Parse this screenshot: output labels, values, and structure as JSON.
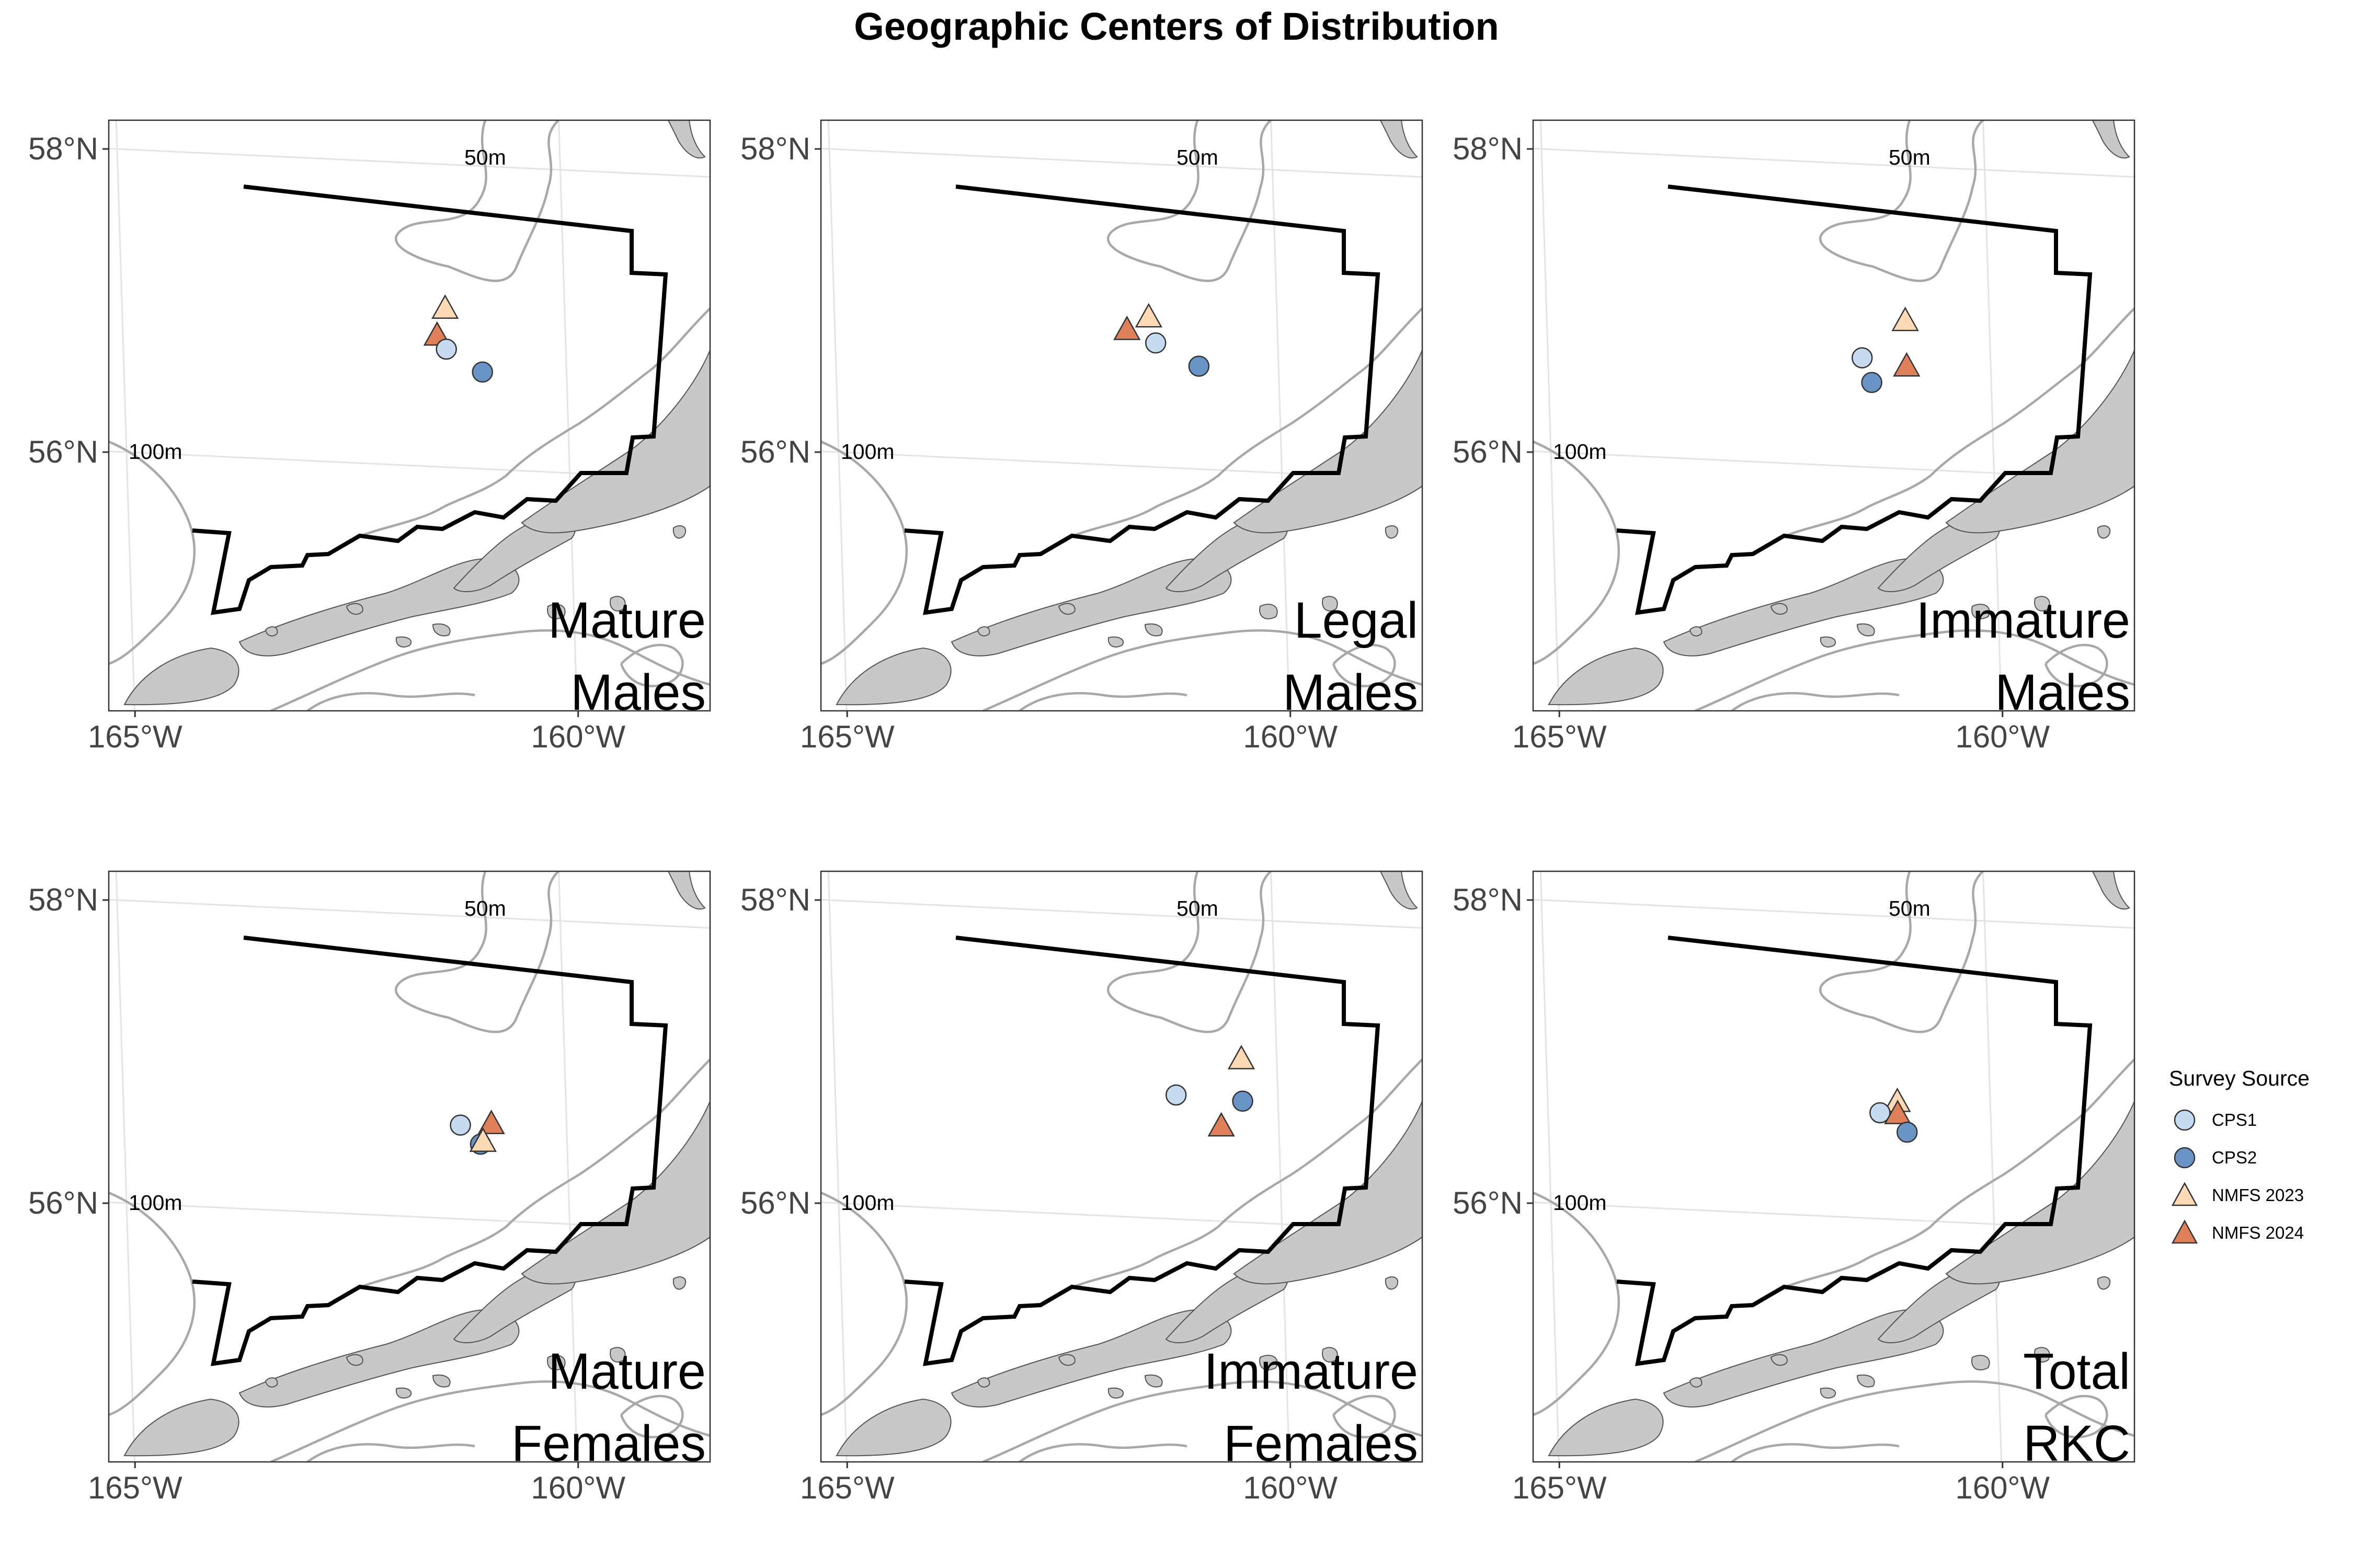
{
  "title": "Geographic Centers of Distribution",
  "axes": {
    "lon_ticks": [
      "165°W",
      "160°W"
    ],
    "lat_ticks": [
      "58°N",
      "56°N"
    ]
  },
  "contour_labels": {
    "shallow": "50m",
    "deep": "100m"
  },
  "legend": {
    "title": "Survey Source",
    "items": [
      {
        "label": "CPS1",
        "shape": "circle",
        "color": "#c6dbef"
      },
      {
        "label": "CPS2",
        "shape": "circle",
        "color": "#6a93c6"
      },
      {
        "label": "NMFS 2023",
        "shape": "triangle",
        "color": "#fdd9b5"
      },
      {
        "label": "NMFS 2024",
        "shape": "triangle",
        "color": "#e0805a"
      }
    ]
  },
  "colors": {
    "land": "#c8c8c8",
    "survey_boundary": "#000000",
    "bathymetry": "#a8a8a8",
    "graticule": "#e4e4e4"
  },
  "chart_data": [
    {
      "type": "map",
      "panel_label": [
        "Mature",
        "Males"
      ],
      "points": [
        {
          "source": "NMFS 2023",
          "lon": -161.35,
          "lat": 57.05
        },
        {
          "source": "NMFS 2024",
          "lon": -161.45,
          "lat": 56.87
        },
        {
          "source": "CPS1",
          "lon": -161.35,
          "lat": 56.78
        },
        {
          "source": "CPS2",
          "lon": -160.95,
          "lat": 56.64
        }
      ]
    },
    {
      "type": "map",
      "panel_label": [
        "Legal",
        "Males"
      ],
      "points": [
        {
          "source": "NMFS 2023",
          "lon": -161.45,
          "lat": 56.99
        },
        {
          "source": "NMFS 2024",
          "lon": -161.7,
          "lat": 56.9
        },
        {
          "source": "CPS1",
          "lon": -161.38,
          "lat": 56.82
        },
        {
          "source": "CPS2",
          "lon": -160.9,
          "lat": 56.68
        }
      ]
    },
    {
      "type": "map",
      "panel_label": [
        "Immature",
        "Males"
      ],
      "points": [
        {
          "source": "NMFS 2023",
          "lon": -160.95,
          "lat": 56.98
        },
        {
          "source": "NMFS 2024",
          "lon": -160.95,
          "lat": 56.68
        },
        {
          "source": "CPS1",
          "lon": -161.45,
          "lat": 56.72
        },
        {
          "source": "CPS2",
          "lon": -161.35,
          "lat": 56.56
        }
      ]
    },
    {
      "type": "map",
      "panel_label": [
        "Mature",
        "Females"
      ],
      "points": [
        {
          "source": "CPS1",
          "lon": -161.2,
          "lat": 56.62
        },
        {
          "source": "NMFS 2024",
          "lon": -160.85,
          "lat": 56.64
        },
        {
          "source": "CPS2",
          "lon": -160.98,
          "lat": 56.5
        },
        {
          "source": "NMFS 2023",
          "lon": -160.95,
          "lat": 56.52
        }
      ]
    },
    {
      "type": "map",
      "panel_label": [
        "Immature",
        "Females"
      ],
      "points": [
        {
          "source": "NMFS 2023",
          "lon": -160.4,
          "lat": 57.08
        },
        {
          "source": "CPS1",
          "lon": -161.15,
          "lat": 56.82
        },
        {
          "source": "CPS2",
          "lon": -160.4,
          "lat": 56.8
        },
        {
          "source": "NMFS 2024",
          "lon": -160.65,
          "lat": 56.63
        }
      ]
    },
    {
      "type": "map",
      "panel_label": [
        "Total",
        "RKC"
      ],
      "points": [
        {
          "source": "NMFS 2023",
          "lon": -161.05,
          "lat": 56.78
        },
        {
          "source": "CPS1",
          "lon": -161.25,
          "lat": 56.7
        },
        {
          "source": "NMFS 2024",
          "lon": -161.05,
          "lat": 56.7
        },
        {
          "source": "CPS2",
          "lon": -160.95,
          "lat": 56.58
        }
      ]
    }
  ]
}
